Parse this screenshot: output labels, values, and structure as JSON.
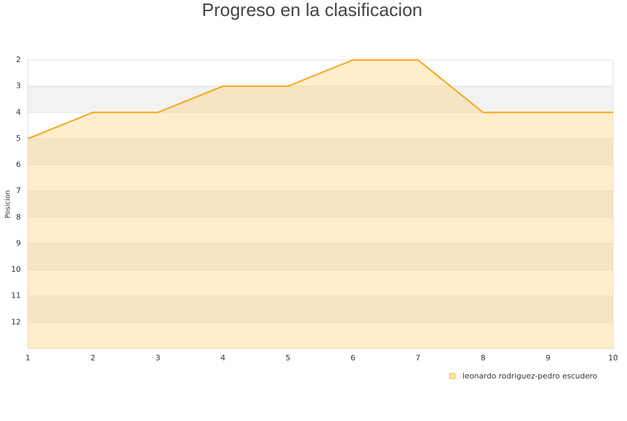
{
  "chart_data": {
    "type": "area",
    "title": "Progreso en la clasificacion",
    "y_label": "Posicion",
    "x": [
      1,
      2,
      3,
      4,
      5,
      6,
      7,
      8,
      9,
      10
    ],
    "series": [
      {
        "name": "leonardo rodriguez-pedro escudero",
        "color": "#f5a516",
        "values": [
          5,
          4,
          4,
          3,
          3,
          2,
          2,
          4,
          4,
          4
        ]
      }
    ],
    "xlim": [
      1,
      10
    ],
    "xticks": [
      1,
      2,
      3,
      4,
      5,
      6,
      7,
      8,
      9,
      10
    ],
    "ylim": [
      2,
      13
    ],
    "yticks": [
      2,
      3,
      4,
      5,
      6,
      7,
      8,
      9,
      10,
      11,
      12
    ],
    "y_inverted": true,
    "grid": true,
    "legend": "bottom-right"
  }
}
